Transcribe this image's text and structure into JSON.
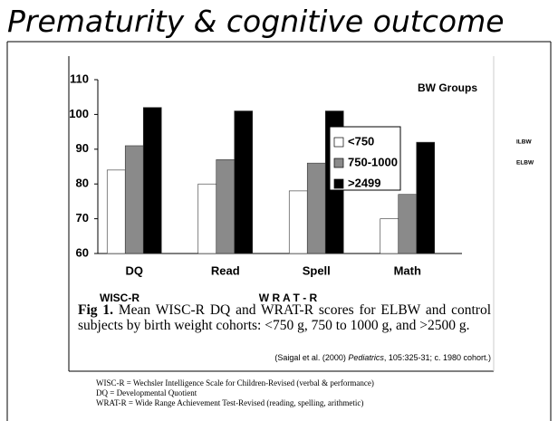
{
  "title": "Prematurity & cognitive outcome",
  "chart_data": {
    "type": "bar",
    "categories": [
      "DQ",
      "Read",
      "Spell",
      "Math"
    ],
    "series": [
      {
        "name": "<750",
        "color": "#ffffff",
        "values": [
          84,
          80,
          78,
          70
        ]
      },
      {
        "name": "750-1000",
        "color": "#8a8a8a",
        "values": [
          91,
          87,
          86,
          77
        ]
      },
      {
        "name": ">2499",
        "color": "#000000",
        "values": [
          102,
          101,
          101,
          92
        ]
      }
    ],
    "ylim": [
      60,
      110
    ],
    "yticks": [
      60,
      70,
      80,
      90,
      100,
      110
    ],
    "legend_title": "BW Groups",
    "group_labels": [
      "WISC-R",
      "W R A T - R"
    ]
  },
  "side_labels": [
    "ILBW",
    "ELBW"
  ],
  "caption": {
    "label": "Fig 1.",
    "text": "Mean WISC-R DQ and WRAT-R scores for ELBW and control subjects by birth weight cohorts: <750 g, 750 to 1000 g, and >2500 g."
  },
  "citation": {
    "before": "(Saigal et al. (2000) ",
    "journal": "Pediatrics",
    "after": ", 105:325-31; c. 1980 cohort.)"
  },
  "footnotes": [
    "WISC-R = Wechsler Intelligence Scale for Children-Revised (verbal & performance)",
    "DQ = Developmental Quotient",
    "WRAT-R = Wide Range Achievement Test-Revised (reading, spelling, arithmetic)"
  ]
}
